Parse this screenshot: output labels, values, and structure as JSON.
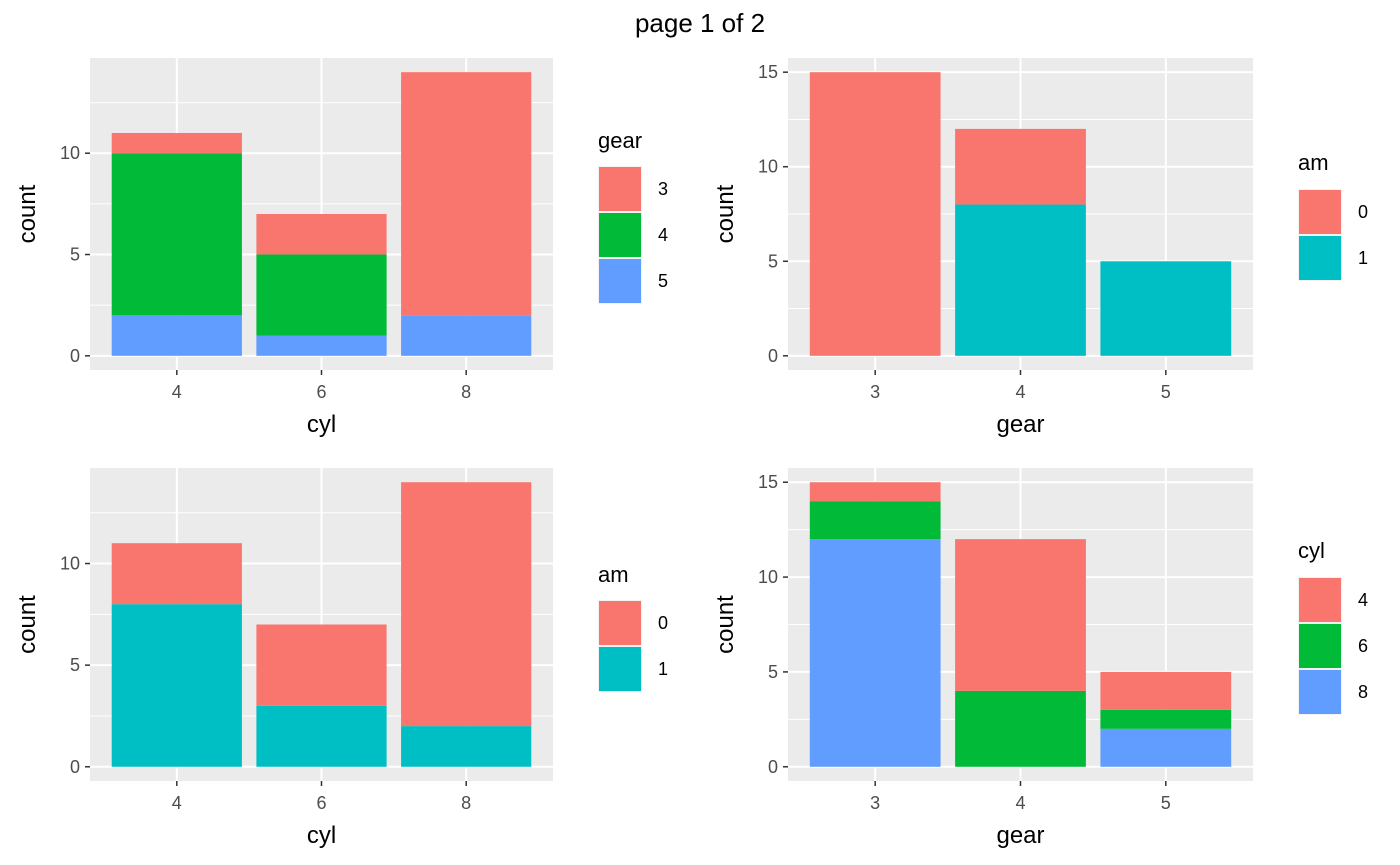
{
  "page_title": "page 1 of 2",
  "colors": {
    "panel_bg": "#EBEBEB",
    "grid": "#FFFFFF",
    "tick_text": "#4D4D4D",
    "red": "#F8766D",
    "green": "#00BA38",
    "blue": "#619CFF",
    "teal": "#00BFC4"
  },
  "chart_data": [
    {
      "type": "bar",
      "stacked": true,
      "xlabel": "cyl",
      "ylabel": "count",
      "categories": [
        "4",
        "6",
        "8"
      ],
      "y_ticks": [
        0,
        5,
        10
      ],
      "ylim": [
        0,
        14
      ],
      "legend_title": "gear",
      "series": [
        {
          "name": "3",
          "color": "#F8766D",
          "values": [
            1,
            2,
            12
          ]
        },
        {
          "name": "4",
          "color": "#00BA38",
          "values": [
            8,
            4,
            0
          ]
        },
        {
          "name": "5",
          "color": "#619CFF",
          "values": [
            2,
            1,
            2
          ]
        }
      ]
    },
    {
      "type": "bar",
      "stacked": true,
      "xlabel": "gear",
      "ylabel": "count",
      "categories": [
        "3",
        "4",
        "5"
      ],
      "y_ticks": [
        0,
        5,
        10,
        15
      ],
      "ylim": [
        0,
        15
      ],
      "legend_title": "am",
      "series": [
        {
          "name": "0",
          "color": "#F8766D",
          "values": [
            15,
            4,
            0
          ]
        },
        {
          "name": "1",
          "color": "#00BFC4",
          "values": [
            0,
            8,
            5
          ]
        }
      ]
    },
    {
      "type": "bar",
      "stacked": true,
      "xlabel": "cyl",
      "ylabel": "count",
      "categories": [
        "4",
        "6",
        "8"
      ],
      "y_ticks": [
        0,
        5,
        10
      ],
      "ylim": [
        0,
        14
      ],
      "legend_title": "am",
      "series": [
        {
          "name": "0",
          "color": "#F8766D",
          "values": [
            3,
            4,
            12
          ]
        },
        {
          "name": "1",
          "color": "#00BFC4",
          "values": [
            8,
            3,
            2
          ]
        }
      ]
    },
    {
      "type": "bar",
      "stacked": true,
      "xlabel": "gear",
      "ylabel": "count",
      "categories": [
        "3",
        "4",
        "5"
      ],
      "y_ticks": [
        0,
        5,
        10,
        15
      ],
      "ylim": [
        0,
        15
      ],
      "legend_title": "cyl",
      "series": [
        {
          "name": "4",
          "color": "#F8766D",
          "values": [
            1,
            8,
            2
          ]
        },
        {
          "name": "6",
          "color": "#00BA38",
          "values": [
            2,
            4,
            1
          ]
        },
        {
          "name": "8",
          "color": "#619CFF",
          "values": [
            12,
            0,
            2
          ]
        }
      ]
    }
  ]
}
